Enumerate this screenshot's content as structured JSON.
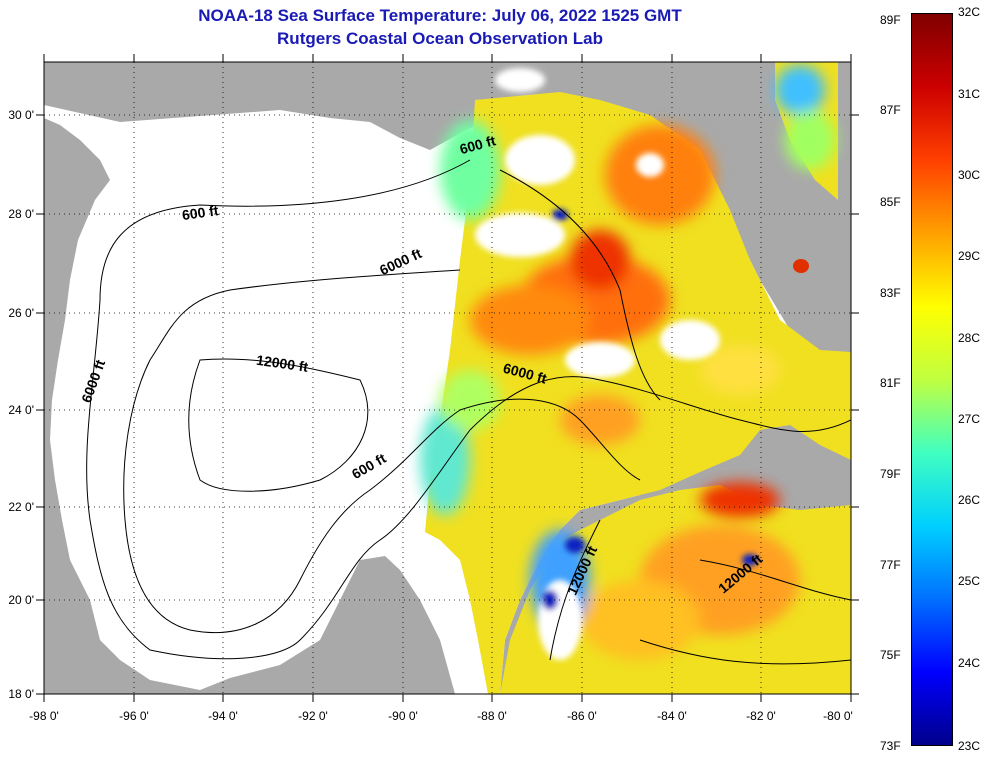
{
  "header": {
    "title": "NOAA-18 Sea Surface Temperature:  July 06, 2022 1525 GMT",
    "subtitle": "Rutgers Coastal Ocean Observation Lab"
  },
  "map": {
    "lon_range": [
      -98,
      -80
    ],
    "lat_range": [
      18,
      31
    ],
    "lon_ticks": [
      "-98 0'",
      "-96 0'",
      "-94 0'",
      "-92 0'",
      "-90 0'",
      "-88 0'",
      "-86 0'",
      "-84 0'",
      "-82 0'",
      "-80 0'"
    ],
    "lat_ticks": [
      "18 0'",
      "20 0'",
      "22 0'",
      "24 0'",
      "26 0'",
      "28 0'",
      "30 0'"
    ],
    "land_color": "#a9a9a9",
    "nodata_color": "#ffffff",
    "depth_contours": [
      {
        "label": "600 ft",
        "lon": -88.3,
        "lat": 29.2
      },
      {
        "label": "600 ft",
        "lon": -94.5,
        "lat": 27.8
      },
      {
        "label": "6000 ft",
        "lon": -90.0,
        "lat": 26.8
      },
      {
        "label": "6000 ft",
        "lon": -96.8,
        "lat": 24.4
      },
      {
        "label": "6000 ft",
        "lon": -87.3,
        "lat": 24.5
      },
      {
        "label": "12000 ft",
        "lon": -92.7,
        "lat": 24.7
      },
      {
        "label": "600 ft",
        "lon": -90.7,
        "lat": 22.6
      },
      {
        "label": "12000 ft",
        "lon": -85.9,
        "lat": 20.5
      },
      {
        "label": "12000 ft",
        "lon": -82.4,
        "lat": 20.4
      }
    ]
  },
  "colorbar": {
    "celsius_labels": [
      "32C",
      "31C",
      "30C",
      "29C",
      "28C",
      "27C",
      "26C",
      "25C",
      "24C",
      "23C"
    ],
    "fahrenheit_labels": [
      "89F",
      "87F",
      "85F",
      "83F",
      "81F",
      "79F",
      "77F",
      "75F",
      "73F"
    ],
    "c_range": [
      23,
      32
    ],
    "colors": [
      "#00008b",
      "#0000ff",
      "#0070ff",
      "#00d0ff",
      "#40ffc0",
      "#c0ff40",
      "#ffff00",
      "#ffa000",
      "#ff4000",
      "#cc0000",
      "#800000"
    ]
  }
}
